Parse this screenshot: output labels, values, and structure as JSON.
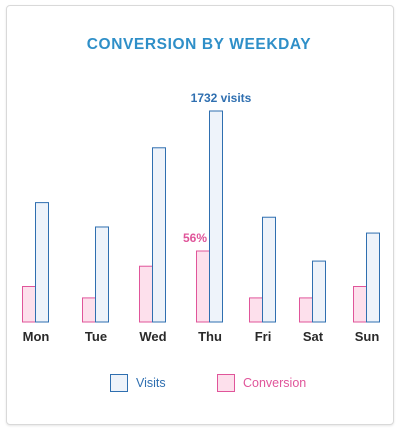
{
  "chart_data": {
    "type": "bar",
    "title": "CONVERSION BY WEEKDAY",
    "categories": [
      "Mon",
      "Tue",
      "Wed",
      "Thu",
      "Fri",
      "Sat",
      "Sun"
    ],
    "series": [
      {
        "name": "Visits",
        "values": [
          980,
          780,
          1430,
          1732,
          860,
          500,
          730
        ],
        "color": "#2f6fb0",
        "fill": "#eef3fa"
      },
      {
        "name": "Conversion",
        "values": [
          28,
          19,
          44,
          56,
          19,
          19,
          28
        ],
        "unit": "%",
        "color": "#e0559a",
        "fill": "#fde0ec"
      }
    ],
    "data_labels": [
      {
        "series": "Visits",
        "category": "Thu",
        "text": "1732 visits"
      },
      {
        "series": "Conversion",
        "category": "Thu",
        "text": "56%"
      }
    ],
    "grid": false,
    "legend": "bottom"
  }
}
